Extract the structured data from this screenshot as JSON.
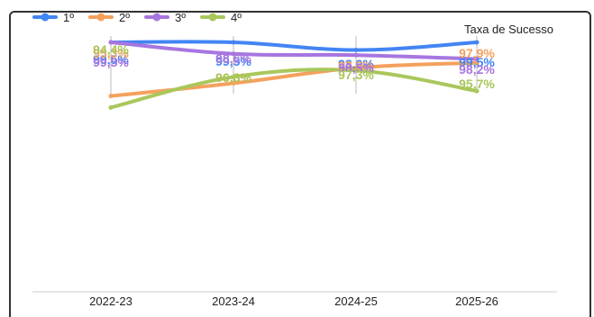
{
  "chart_data": {
    "type": "line",
    "title": "Taxa de Sucesso",
    "xlabel": "",
    "ylabel": "",
    "categories": [
      "2022-23",
      "2023-24",
      "2024-25",
      "2025-26"
    ],
    "ylim": [
      0,
      100
    ],
    "grid": false,
    "legend_position": "top-left",
    "series": [
      {
        "name": "1º",
        "color": "#4285f4",
        "values": [
          99.5,
          99.5,
          98.9,
          99.5
        ],
        "labels": [
          "99,5%",
          "99,5%",
          "98,9%",
          "99,5%"
        ]
      },
      {
        "name": "2º",
        "color": "#f4a15d",
        "values": [
          95.3,
          96.3,
          97.5,
          97.9
        ],
        "labels": [
          "95,3%",
          "96,3%",
          "97,5%",
          "97,9%"
        ]
      },
      {
        "name": "3º",
        "color": "#a776e0",
        "values": [
          99.5,
          98.6,
          98.5,
          98.2
        ],
        "labels": [
          "99,5%",
          "98,6%",
          "98,5%",
          "98,2%"
        ]
      },
      {
        "name": "4º",
        "color": "#a9c75b",
        "values": [
          94.4,
          96.8,
          97.3,
          95.7
        ],
        "labels": [
          "94,4%",
          "96,8%",
          "97,3%",
          "95,7%"
        ]
      }
    ]
  }
}
